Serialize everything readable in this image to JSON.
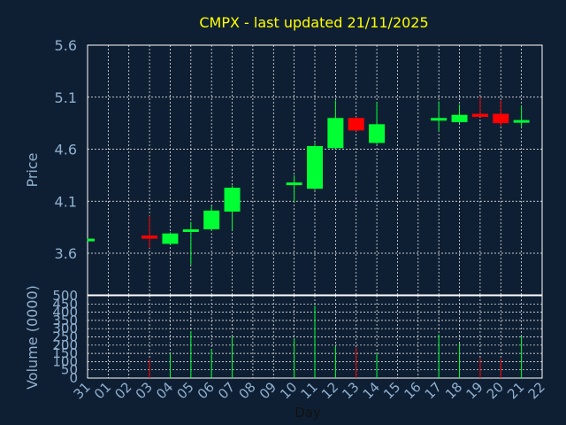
{
  "chart_data": {
    "type": "candlestick",
    "title": "CMPX - last updated 21/11/2025",
    "price_axis": {
      "label": "Price",
      "ylim": [
        3.2,
        5.6
      ],
      "ticks": [
        3.6,
        4.1,
        4.6,
        5.1,
        5.6
      ]
    },
    "volume_axis": {
      "label": "Volume (0000)",
      "ylim": [
        0,
        500
      ],
      "ticks": [
        0,
        50,
        100,
        150,
        200,
        250,
        300,
        350,
        400,
        450,
        500
      ]
    },
    "x_axis": {
      "label": "Day",
      "ticks": [
        "31",
        "01",
        "02",
        "03",
        "04",
        "05",
        "06",
        "07",
        "08",
        "09",
        "10",
        "11",
        "12",
        "13",
        "14",
        "15",
        "16",
        "17",
        "18",
        "19",
        "20",
        "21",
        "22"
      ]
    },
    "grid": true,
    "up_color": "#00ff33",
    "down_color": "#ff0000",
    "candles": [
      {
        "day": "31",
        "open": 3.73,
        "high": 3.74,
        "low": 3.72,
        "close": 3.74,
        "volume": 0
      },
      {
        "day": "03",
        "open": 3.77,
        "high": 3.96,
        "low": 3.65,
        "close": 3.74,
        "volume": 115
      },
      {
        "day": "04",
        "open": 3.69,
        "high": 3.8,
        "low": 3.68,
        "close": 3.79,
        "volume": 150
      },
      {
        "day": "05",
        "open": 3.81,
        "high": 3.9,
        "low": 3.49,
        "close": 3.83,
        "volume": 285
      },
      {
        "day": "06",
        "open": 3.83,
        "high": 4.05,
        "low": 3.82,
        "close": 4.01,
        "volume": 175
      },
      {
        "day": "07",
        "open": 4.0,
        "high": 4.25,
        "low": 3.82,
        "close": 4.23,
        "volume": 250
      },
      {
        "day": "10",
        "open": 4.26,
        "high": 4.35,
        "low": 4.09,
        "close": 4.28,
        "volume": 240
      },
      {
        "day": "11",
        "open": 4.22,
        "high": 4.66,
        "low": 4.21,
        "close": 4.63,
        "volume": 440
      },
      {
        "day": "12",
        "open": 4.61,
        "high": 5.07,
        "low": 4.6,
        "close": 4.9,
        "volume": 195
      },
      {
        "day": "13",
        "open": 4.9,
        "high": 4.91,
        "low": 4.77,
        "close": 4.78,
        "volume": 185
      },
      {
        "day": "14",
        "open": 4.66,
        "high": 5.05,
        "low": 4.65,
        "close": 4.84,
        "volume": 150
      },
      {
        "day": "17",
        "open": 4.89,
        "high": 5.06,
        "low": 4.77,
        "close": 4.9,
        "volume": 265
      },
      {
        "day": "18",
        "open": 4.86,
        "high": 5.03,
        "low": 4.85,
        "close": 4.93,
        "volume": 210
      },
      {
        "day": "19",
        "open": 4.94,
        "high": 5.1,
        "low": 4.91,
        "close": 4.91,
        "volume": 120
      },
      {
        "day": "20",
        "open": 4.94,
        "high": 5.07,
        "low": 4.82,
        "close": 4.85,
        "volume": 115
      },
      {
        "day": "21",
        "open": 4.86,
        "high": 5.02,
        "low": 4.81,
        "close": 4.88,
        "volume": 255
      }
    ]
  }
}
